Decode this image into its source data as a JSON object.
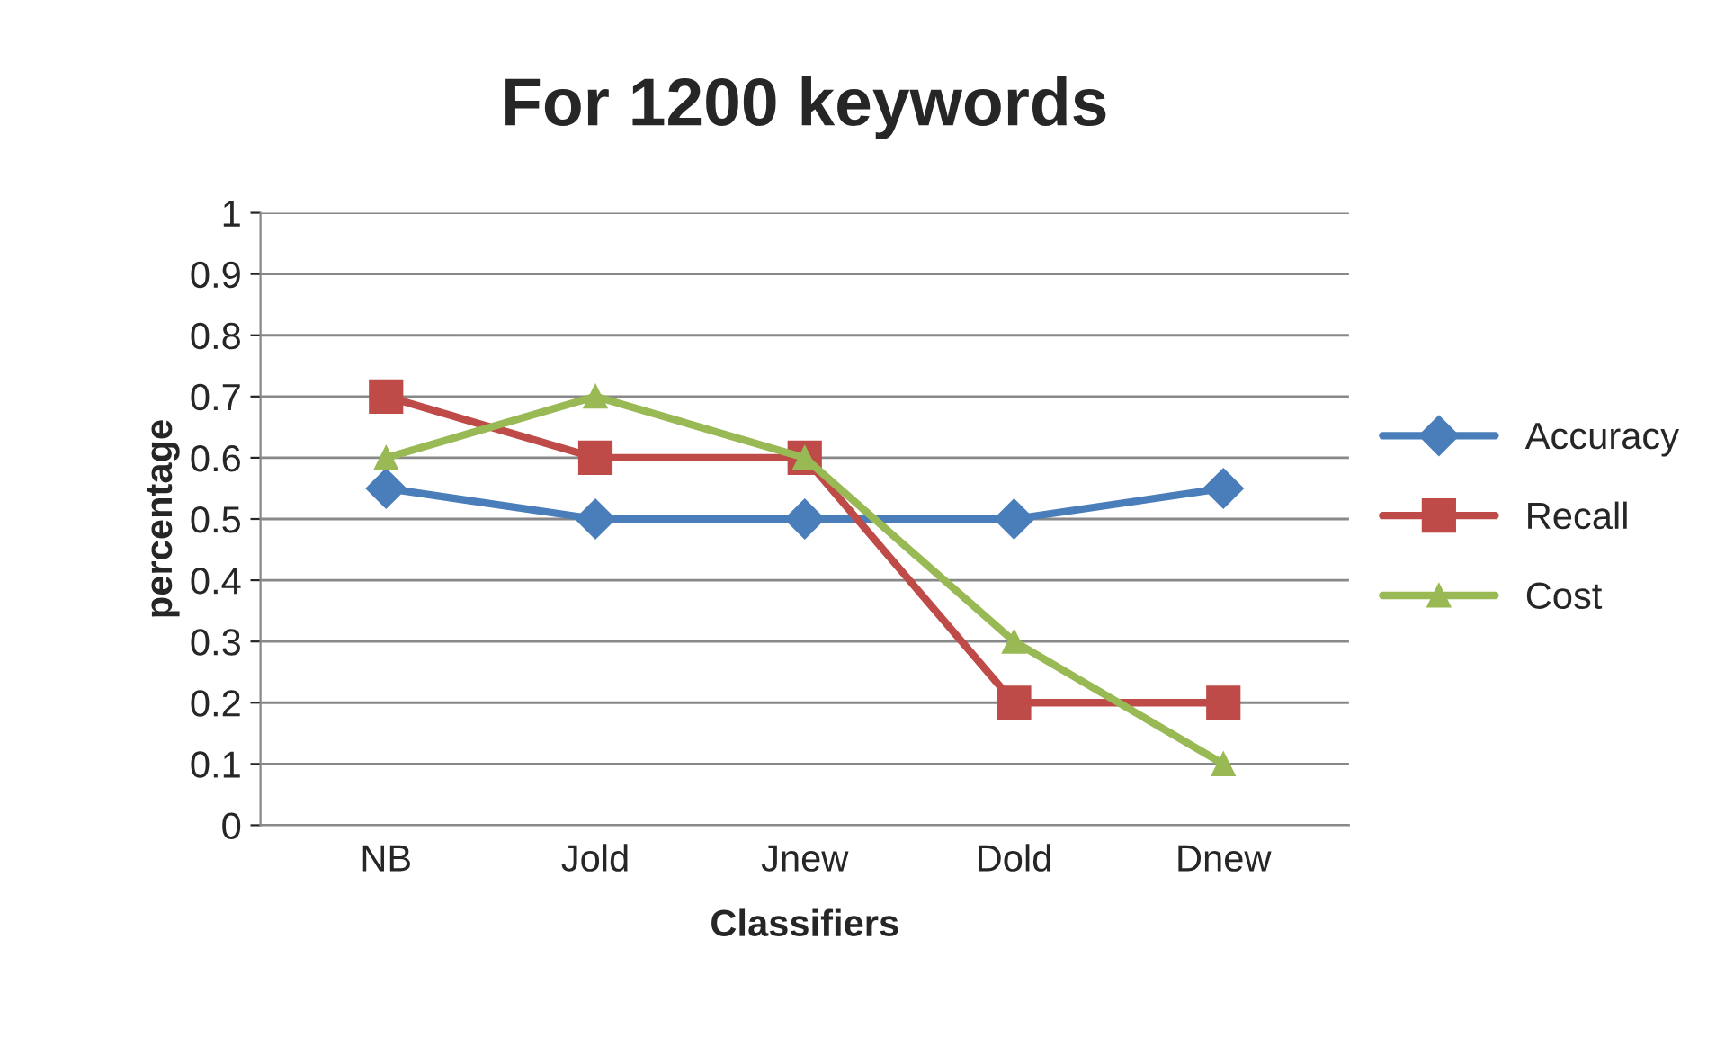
{
  "chart_data": {
    "type": "line",
    "title": "For 1200 keywords",
    "xlabel": "Classifiers",
    "ylabel": "percentage",
    "categories": [
      "NB",
      "Jold",
      "Jnew",
      "Dold",
      "Dnew"
    ],
    "series": [
      {
        "name": "Accuracy",
        "color": "#4a7ebb",
        "marker": "diamond",
        "values": [
          0.55,
          0.5,
          0.5,
          0.5,
          0.55
        ]
      },
      {
        "name": "Recall",
        "color": "#be4b48",
        "marker": "square",
        "values": [
          0.7,
          0.6,
          0.6,
          0.2,
          0.2
        ]
      },
      {
        "name": "Cost",
        "color": "#98b954",
        "marker": "triangle",
        "values": [
          0.6,
          0.7,
          0.6,
          0.3,
          0.1
        ]
      }
    ],
    "ylim": [
      0,
      1
    ],
    "yticks": [
      0,
      0.1,
      0.2,
      0.3,
      0.4,
      0.5,
      0.6,
      0.7,
      0.8,
      0.9,
      1
    ],
    "grid": "y",
    "legend": "right",
    "line_style": "solid"
  }
}
